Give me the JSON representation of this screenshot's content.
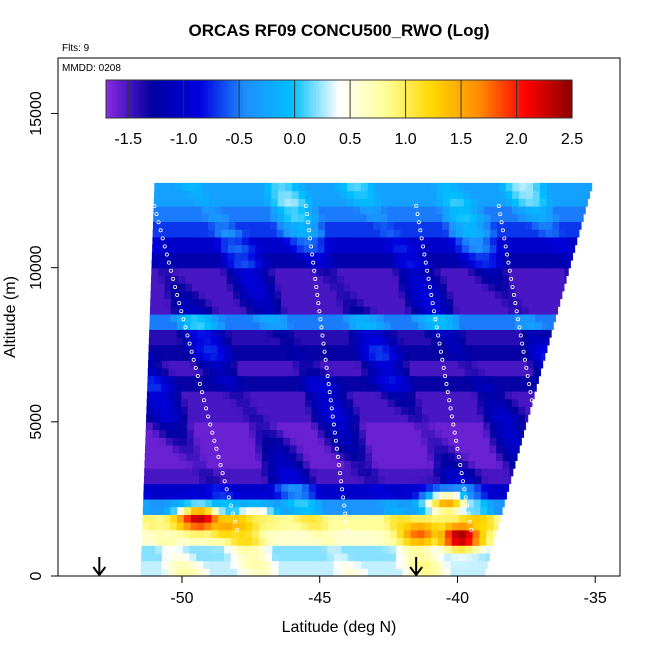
{
  "chart_data": {
    "type": "heatmap",
    "title": "ORCAS RF09 CONCU500_RWO (Log)",
    "subtitle_flights": "Flts: 9",
    "subtitle_date": "MMDD: 0208",
    "xlabel": "Latitude (deg N)",
    "ylabel": "Altitude (m)",
    "xlim": [
      -54.5,
      -34.1
    ],
    "ylim": [
      0,
      16800
    ],
    "x_ticks": [
      -50,
      -45,
      -40,
      -35
    ],
    "x_tick_labels": [
      "-50",
      "-45",
      "-40",
      "-35"
    ],
    "y_ticks": [
      0,
      5000,
      10000,
      15000
    ],
    "y_tick_labels": [
      "0",
      "5000",
      "10000",
      "15000"
    ],
    "colorbar": {
      "range": [
        -1.7,
        2.5
      ],
      "ticks": [
        -1.5,
        -1.0,
        -0.5,
        0.0,
        0.5,
        1.0,
        1.5,
        2.0,
        2.5
      ],
      "tick_labels": [
        "-1.5",
        "-1.0",
        "-0.5",
        "0.0",
        "0.5",
        "1.0",
        "1.5",
        "2.0",
        "2.5"
      ],
      "colors": [
        "#8a2be2",
        "#0000a0",
        "#0000e0",
        "#1e90ff",
        "#00bfff",
        "#ffffff",
        "#ffff99",
        "#ffd700",
        "#ff8c00",
        "#ff0000",
        "#8b0000"
      ]
    },
    "domain_lat_range_bottom": [
      -51.5,
      -39.0
    ],
    "domain_lat_range_top": [
      -51.0,
      -35.1
    ],
    "domain_alt_range": [
      0,
      12600
    ],
    "value_profile_by_altitude": [
      {
        "alt": 250,
        "value": 0.3
      },
      {
        "alt": 750,
        "value": 0.2
      },
      {
        "alt": 1250,
        "value": 0.6
      },
      {
        "alt": 1750,
        "value": 0.8
      },
      {
        "alt": 2250,
        "value": -0.4
      },
      {
        "alt": 2750,
        "value": -1.0
      },
      {
        "alt": 3250,
        "value": -1.5
      },
      {
        "alt": 3750,
        "value": -1.6
      },
      {
        "alt": 4250,
        "value": -1.6
      },
      {
        "alt": 4750,
        "value": -1.6
      },
      {
        "alt": 5250,
        "value": -1.5
      },
      {
        "alt": 5750,
        "value": -1.5
      },
      {
        "alt": 6250,
        "value": -1.3
      },
      {
        "alt": 6750,
        "value": -1.5
      },
      {
        "alt": 7250,
        "value": -1.3
      },
      {
        "alt": 7750,
        "value": -1.4
      },
      {
        "alt": 8250,
        "value": -0.5
      },
      {
        "alt": 8750,
        "value": -1.5
      },
      {
        "alt": 9250,
        "value": -1.5
      },
      {
        "alt": 9750,
        "value": -1.5
      },
      {
        "alt": 10250,
        "value": -1.2
      },
      {
        "alt": 10750,
        "value": -1.0
      },
      {
        "alt": 11250,
        "value": -0.7
      },
      {
        "alt": 11750,
        "value": -0.5
      },
      {
        "alt": 12250,
        "value": -0.3
      }
    ],
    "hotspots": [
      {
        "lat": -49.5,
        "alt": 1750,
        "value": 2.3
      },
      {
        "lat": -48.5,
        "alt": 1500,
        "value": 1.5
      },
      {
        "lat": -47.5,
        "alt": 1750,
        "value": 1.0
      },
      {
        "lat": -41.5,
        "alt": 1250,
        "value": 1.8
      },
      {
        "lat": -40.0,
        "alt": 1150,
        "value": 2.5
      },
      {
        "lat": -40.5,
        "alt": 2250,
        "value": 1.5
      }
    ],
    "flight_track_markers_lat": [
      -53.0,
      -41.5
    ]
  }
}
